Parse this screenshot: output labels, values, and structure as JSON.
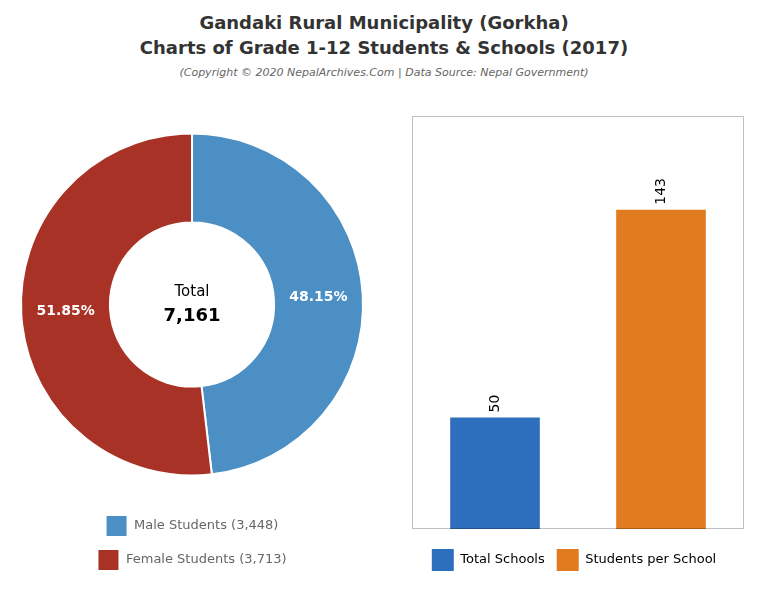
{
  "title": [
    "Gandaki Rural Municipality (Gorkha)",
    "Charts of Grade 1-12 Students & Schools (2017)"
  ],
  "subtitle": "(Copyright © 2020 NepalArchives.Com | Data Source: Nepal Government)",
  "chart_data": [
    {
      "type": "doughnut",
      "categories": [
        "Male Students (3,448)",
        "Female Students (3,713)"
      ],
      "values": [
        48.15,
        51.85
      ],
      "value_labels": [
        "48.15%",
        "51.85%"
      ],
      "colors": [
        "#4b8fc4",
        "#a93226"
      ],
      "data_labels": true,
      "annotations": [
        "Total",
        "7,161"
      ],
      "legend": "bottom"
    },
    {
      "type": "bar",
      "categories": [
        "Total Schools",
        "Students per School"
      ],
      "values": [
        50,
        143
      ],
      "colors": [
        "#2e6fbd",
        "#e07b20"
      ],
      "ylim": [
        0,
        185
      ],
      "tick_labels": false,
      "grid": false,
      "data_labels": true,
      "legend": "bottom"
    }
  ]
}
